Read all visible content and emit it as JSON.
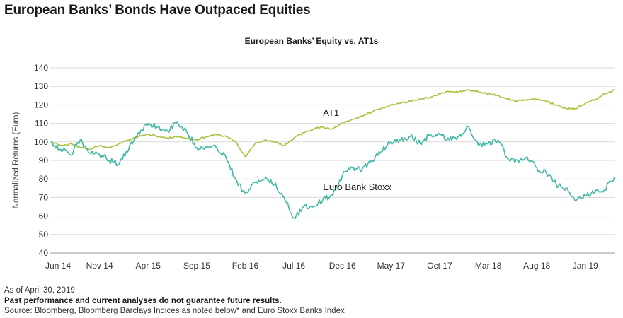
{
  "headline": "European Banks’ Bonds Have Outpaced Equities",
  "footnotes": {
    "as_of": "As of April 30, 2019",
    "disclaimer": "Past performance and current analyses do not guarantee future results.",
    "source": "Source: Bloomberg, Bloomberg Barclays Indices as noted below* and Euro Stoxx Banks Index"
  },
  "chart_data": {
    "type": "line",
    "title": "European Banks’ Equity vs. AT1s",
    "ylabel": "Normalized Returns (Euro)",
    "xlabel": "",
    "ylim": [
      40,
      140
    ],
    "yticks": [
      40,
      50,
      60,
      70,
      80,
      90,
      100,
      110,
      120,
      130,
      140
    ],
    "xlim": [
      "2014-06",
      "2019-04"
    ],
    "xticks": [
      {
        "x": "2014-06",
        "label": "Jun 14"
      },
      {
        "x": "2014-11",
        "label": "Nov 14"
      },
      {
        "x": "2015-04",
        "label": "Apr 15"
      },
      {
        "x": "2015-09",
        "label": "Sep 15"
      },
      {
        "x": "2016-02",
        "label": "Feb 16"
      },
      {
        "x": "2016-07",
        "label": "Jul 16"
      },
      {
        "x": "2016-12",
        "label": "Dec 16"
      },
      {
        "x": "2017-05",
        "label": "May 17"
      },
      {
        "x": "2017-10",
        "label": "Oct 17"
      },
      {
        "x": "2018-03",
        "label": "Mar 18"
      },
      {
        "x": "2018-08",
        "label": "Aug 18"
      },
      {
        "x": "2019-01",
        "label": "Jan 19"
      }
    ],
    "grid": true,
    "series": [
      {
        "name": "AT1",
        "color": "#a9c23f",
        "points": [
          [
            "2014-06",
            100
          ],
          [
            "2014-07",
            98
          ],
          [
            "2014-08",
            99
          ],
          [
            "2014-09",
            97
          ],
          [
            "2014-10",
            96
          ],
          [
            "2014-11",
            98
          ],
          [
            "2014-12",
            97
          ],
          [
            "2015-01",
            99
          ],
          [
            "2015-02",
            101
          ],
          [
            "2015-03",
            103
          ],
          [
            "2015-04",
            104
          ],
          [
            "2015-05",
            103
          ],
          [
            "2015-06",
            102
          ],
          [
            "2015-07",
            103
          ],
          [
            "2015-08",
            102
          ],
          [
            "2015-09",
            101
          ],
          [
            "2015-10",
            103
          ],
          [
            "2015-11",
            104
          ],
          [
            "2015-12",
            103
          ],
          [
            "2016-01",
            100
          ],
          [
            "2016-02",
            92
          ],
          [
            "2016-03",
            99
          ],
          [
            "2016-04",
            101
          ],
          [
            "2016-05",
            100
          ],
          [
            "2016-06",
            98
          ],
          [
            "2016-07",
            102
          ],
          [
            "2016-08",
            105
          ],
          [
            "2016-09",
            107
          ],
          [
            "2016-10",
            108
          ],
          [
            "2016-11",
            107
          ],
          [
            "2016-12",
            110
          ],
          [
            "2017-01",
            112
          ],
          [
            "2017-02",
            114
          ],
          [
            "2017-03",
            116
          ],
          [
            "2017-04",
            118
          ],
          [
            "2017-05",
            120
          ],
          [
            "2017-06",
            121
          ],
          [
            "2017-07",
            122
          ],
          [
            "2017-08",
            123
          ],
          [
            "2017-09",
            124
          ],
          [
            "2017-10",
            126
          ],
          [
            "2017-11",
            127
          ],
          [
            "2017-12",
            127
          ],
          [
            "2018-01",
            128
          ],
          [
            "2018-02",
            127
          ],
          [
            "2018-03",
            126
          ],
          [
            "2018-04",
            125
          ],
          [
            "2018-05",
            123
          ],
          [
            "2018-06",
            122
          ],
          [
            "2018-07",
            123
          ],
          [
            "2018-08",
            123
          ],
          [
            "2018-09",
            122
          ],
          [
            "2018-10",
            120
          ],
          [
            "2018-11",
            118
          ],
          [
            "2018-12",
            118
          ],
          [
            "2019-01",
            121
          ],
          [
            "2019-02",
            123
          ],
          [
            "2019-03",
            126
          ],
          [
            "2019-04",
            128
          ]
        ]
      },
      {
        "name": "Euro Bank Stoxx",
        "color": "#3fb8a8",
        "points": [
          [
            "2014-06",
            100
          ],
          [
            "2014-07",
            96
          ],
          [
            "2014-08",
            93
          ],
          [
            "2014-09",
            101
          ],
          [
            "2014-10",
            94
          ],
          [
            "2014-11",
            93
          ],
          [
            "2014-12",
            90
          ],
          [
            "2015-01",
            88
          ],
          [
            "2015-02",
            96
          ],
          [
            "2015-03",
            105
          ],
          [
            "2015-04",
            110
          ],
          [
            "2015-05",
            108
          ],
          [
            "2015-06",
            106
          ],
          [
            "2015-07",
            111
          ],
          [
            "2015-08",
            105
          ],
          [
            "2015-09",
            97
          ],
          [
            "2015-10",
            97
          ],
          [
            "2015-11",
            97
          ],
          [
            "2015-12",
            92
          ],
          [
            "2016-01",
            80
          ],
          [
            "2016-02",
            72
          ],
          [
            "2016-03",
            78
          ],
          [
            "2016-04",
            80
          ],
          [
            "2016-05",
            77
          ],
          [
            "2016-06",
            70
          ],
          [
            "2016-07",
            59
          ],
          [
            "2016-08",
            65
          ],
          [
            "2016-09",
            65
          ],
          [
            "2016-10",
            69
          ],
          [
            "2016-11",
            71
          ],
          [
            "2016-12",
            82
          ],
          [
            "2017-01",
            86
          ],
          [
            "2017-02",
            85
          ],
          [
            "2017-03",
            90
          ],
          [
            "2017-04",
            95
          ],
          [
            "2017-05",
            100
          ],
          [
            "2017-06",
            101
          ],
          [
            "2017-07",
            103
          ],
          [
            "2017-08",
            99
          ],
          [
            "2017-09",
            104
          ],
          [
            "2017-10",
            104
          ],
          [
            "2017-11",
            101
          ],
          [
            "2017-12",
            103
          ],
          [
            "2018-01",
            108
          ],
          [
            "2018-02",
            98
          ],
          [
            "2018-03",
            99
          ],
          [
            "2018-04",
            101
          ],
          [
            "2018-05",
            91
          ],
          [
            "2018-06",
            90
          ],
          [
            "2018-07",
            92
          ],
          [
            "2018-08",
            86
          ],
          [
            "2018-09",
            83
          ],
          [
            "2018-10",
            77
          ],
          [
            "2018-11",
            75
          ],
          [
            "2018-12",
            68
          ],
          [
            "2019-01",
            71
          ],
          [
            "2019-02",
            73
          ],
          [
            "2019-03",
            74
          ],
          [
            "2019-04",
            81
          ]
        ]
      }
    ]
  }
}
